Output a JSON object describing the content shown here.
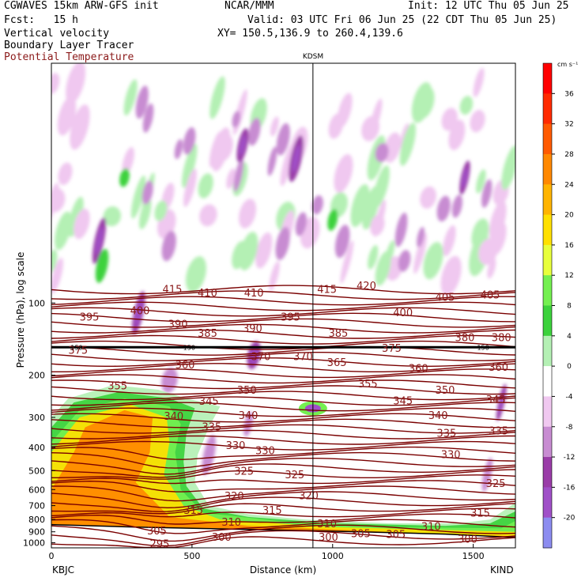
{
  "header": {
    "model": "CGWAVES 15km ARW-GFS init",
    "org": "NCAR/MMM",
    "init": "Init: 12 UTC Thu 05 Jun 25",
    "fcst_label": "Fcst:   15 h",
    "valid": "Valid: 03 UTC Fri 06 Jun 25 (22 CDT Thu 05 Jun 25)",
    "var1": "Vertical velocity",
    "var2": "Boundary Layer Tracer",
    "var3": "Potential Temperature",
    "xy": "XY= 150.5,136.9 to 260.4,139.6"
  },
  "colors": {
    "theta_line": "#7a0000",
    "accent_text": "#8b1a1a"
  },
  "chart_data": {
    "type": "heatmap",
    "title": "KDSM",
    "xlabel": "Distance (km)",
    "ylabel": "Pressure (hPa), log scale",
    "x_ticks": [
      0,
      500,
      1000,
      1500
    ],
    "x_range": [
      0,
      1650
    ],
    "y_ticks": [
      100,
      200,
      300,
      400,
      500,
      600,
      700,
      800,
      900,
      1000
    ],
    "y_range_hpa": [
      1050,
      10
    ],
    "y_scale": "log",
    "left_station": "KBJC",
    "right_station": "KIND",
    "vertical_marker_km": 930,
    "colorbar": {
      "unit": "cm s⁻¹",
      "ticks": [
        36,
        32,
        28,
        24,
        20,
        16,
        12,
        8,
        4,
        0,
        -4,
        -8,
        -12,
        -16,
        -20
      ],
      "stops": [
        {
          "v": 40,
          "c": "#ff0000"
        },
        {
          "v": 36,
          "c": "#ff2a00"
        },
        {
          "v": 32,
          "c": "#ff5a00"
        },
        {
          "v": 28,
          "c": "#ff8800"
        },
        {
          "v": 24,
          "c": "#ffb400"
        },
        {
          "v": 20,
          "c": "#ffe000"
        },
        {
          "v": 16,
          "c": "#e8ff3c"
        },
        {
          "v": 12,
          "c": "#74f050"
        },
        {
          "v": 8,
          "c": "#3cd23c"
        },
        {
          "v": 4,
          "c": "#b4f0b4"
        },
        {
          "v": 0,
          "c": "#ffffff"
        },
        {
          "v": -4,
          "c": "#f0c8f0"
        },
        {
          "v": -8,
          "c": "#c88cd2"
        },
        {
          "v": -12,
          "c": "#9a3ca8"
        },
        {
          "v": -16,
          "c": "#a050c8"
        },
        {
          "v": -20,
          "c": "#8c8cf0"
        }
      ]
    },
    "theta_labels": [
      {
        "v": "415",
        "x": 430,
        "p": 88
      },
      {
        "v": "410",
        "x": 555,
        "p": 91
      },
      {
        "v": "410",
        "x": 720,
        "p": 91
      },
      {
        "v": "415",
        "x": 980,
        "p": 88
      },
      {
        "v": "420",
        "x": 1120,
        "p": 85
      },
      {
        "v": "405",
        "x": 1400,
        "p": 95
      },
      {
        "v": "405",
        "x": 1560,
        "p": 93
      },
      {
        "v": "395",
        "x": 135,
        "p": 115
      },
      {
        "v": "400",
        "x": 315,
        "p": 108
      },
      {
        "v": "390",
        "x": 450,
        "p": 123
      },
      {
        "v": "385",
        "x": 555,
        "p": 134
      },
      {
        "v": "390",
        "x": 715,
        "p": 128
      },
      {
        "v": "395",
        "x": 850,
        "p": 115
      },
      {
        "v": "400",
        "x": 1250,
        "p": 110
      },
      {
        "v": "385",
        "x": 1020,
        "p": 134
      },
      {
        "v": "375",
        "x": 1210,
        "p": 155
      },
      {
        "v": "380",
        "x": 1470,
        "p": 140
      },
      {
        "v": "380",
        "x": 1600,
        "p": 140
      },
      {
        "v": "375",
        "x": 95,
        "p": 158
      },
      {
        "v": "360",
        "x": 475,
        "p": 182
      },
      {
        "v": "370",
        "x": 745,
        "p": 168
      },
      {
        "v": "370",
        "x": 895,
        "p": 168
      },
      {
        "v": "365",
        "x": 1015,
        "p": 178
      },
      {
        "v": "360",
        "x": 1305,
        "p": 188
      },
      {
        "v": "360",
        "x": 1590,
        "p": 186
      },
      {
        "v": "355",
        "x": 235,
        "p": 222
      },
      {
        "v": "350",
        "x": 695,
        "p": 232
      },
      {
        "v": "355",
        "x": 1125,
        "p": 218
      },
      {
        "v": "350",
        "x": 1400,
        "p": 232
      },
      {
        "v": "345",
        "x": 560,
        "p": 258
      },
      {
        "v": "345",
        "x": 1250,
        "p": 257
      },
      {
        "v": "345",
        "x": 1580,
        "p": 254
      },
      {
        "v": "340",
        "x": 435,
        "p": 298
      },
      {
        "v": "340",
        "x": 700,
        "p": 296
      },
      {
        "v": "340",
        "x": 1375,
        "p": 296
      },
      {
        "v": "335",
        "x": 570,
        "p": 330
      },
      {
        "v": "335",
        "x": 1405,
        "p": 350
      },
      {
        "v": "335",
        "x": 1590,
        "p": 343
      },
      {
        "v": "330",
        "x": 655,
        "p": 395
      },
      {
        "v": "330",
        "x": 760,
        "p": 415
      },
      {
        "v": "330",
        "x": 1420,
        "p": 430
      },
      {
        "v": "325",
        "x": 685,
        "p": 505
      },
      {
        "v": "325",
        "x": 865,
        "p": 522
      },
      {
        "v": "325",
        "x": 1580,
        "p": 568
      },
      {
        "v": "320",
        "x": 650,
        "p": 640
      },
      {
        "v": "320",
        "x": 915,
        "p": 638
      },
      {
        "v": "315",
        "x": 505,
        "p": 735
      },
      {
        "v": "315",
        "x": 785,
        "p": 735
      },
      {
        "v": "315",
        "x": 1525,
        "p": 755
      },
      {
        "v": "310",
        "x": 640,
        "p": 825
      },
      {
        "v": "310",
        "x": 980,
        "p": 835
      },
      {
        "v": "310",
        "x": 1350,
        "p": 860
      },
      {
        "v": "305",
        "x": 375,
        "p": 895
      },
      {
        "v": "305",
        "x": 1100,
        "p": 918
      },
      {
        "v": "305",
        "x": 1225,
        "p": 925
      },
      {
        "v": "300",
        "x": 605,
        "p": 950
      },
      {
        "v": "300",
        "x": 985,
        "p": 950
      },
      {
        "v": "300",
        "x": 1480,
        "p": 970
      },
      {
        "v": "295",
        "x": 385,
        "p": 1015
      }
    ],
    "tracer_labels": [
      {
        "v": "150",
        "x": 90,
        "p": 153
      },
      {
        "v": "150",
        "x": 490,
        "p": 153
      },
      {
        "v": "150",
        "x": 1535,
        "p": 153
      }
    ]
  }
}
